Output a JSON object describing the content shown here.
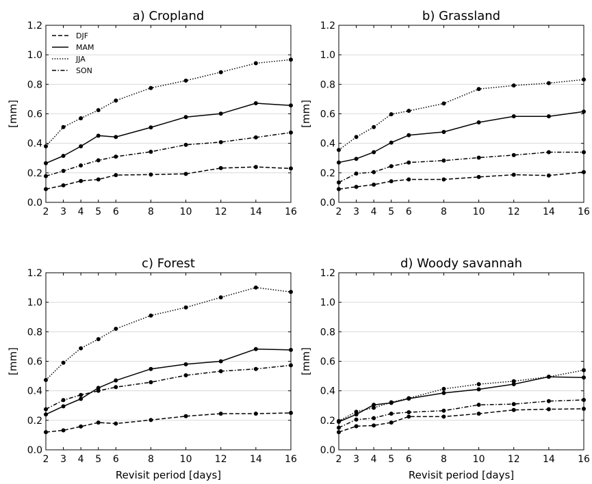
{
  "chart_data": [
    {
      "type": "line",
      "title": "a) Cropland",
      "xlabel": "",
      "ylabel": "[mm]",
      "x": [
        2,
        3,
        4,
        5,
        6,
        8,
        10,
        12,
        14,
        16
      ],
      "xticks": [
        "2",
        "3",
        "4",
        "5",
        "6",
        "8",
        "10",
        "12",
        "14",
        "16"
      ],
      "yticks": [
        "0.0",
        "0.2",
        "0.4",
        "0.6",
        "0.8",
        "1.0",
        "1.2"
      ],
      "ylim": [
        0,
        1.2
      ],
      "grid": "horizontal",
      "legend": {
        "placement": "top-left"
      },
      "series": [
        {
          "name": "DJF",
          "style": "dashed",
          "values": [
            0.09,
            0.115,
            0.145,
            0.155,
            0.185,
            0.188,
            0.193,
            0.232,
            0.24,
            0.23
          ]
        },
        {
          "name": "MAM",
          "style": "solid",
          "values": [
            0.265,
            0.315,
            0.38,
            0.452,
            0.443,
            0.508,
            0.578,
            0.601,
            0.672,
            0.657
          ]
        },
        {
          "name": "JJA",
          "style": "dotted",
          "values": [
            0.38,
            0.51,
            0.57,
            0.625,
            0.69,
            0.775,
            0.825,
            0.882,
            0.943,
            0.967
          ]
        },
        {
          "name": "SON",
          "style": "dashdot",
          "values": [
            0.178,
            0.213,
            0.25,
            0.285,
            0.31,
            0.343,
            0.39,
            0.408,
            0.44,
            0.473
          ]
        }
      ]
    },
    {
      "type": "line",
      "title": "b) Grassland",
      "xlabel": "",
      "ylabel": "[mm]",
      "x": [
        2,
        3,
        4,
        5,
        6,
        8,
        10,
        12,
        14,
        16
      ],
      "xticks": [
        "2",
        "3",
        "4",
        "5",
        "6",
        "8",
        "10",
        "12",
        "14",
        "16"
      ],
      "yticks": [
        "0.0",
        "0.2",
        "0.4",
        "0.6",
        "0.8",
        "1.0",
        "1.2"
      ],
      "ylim": [
        0,
        1.2
      ],
      "grid": "horizontal",
      "series": [
        {
          "name": "DJF",
          "style": "dashed",
          "values": [
            0.09,
            0.105,
            0.12,
            0.143,
            0.155,
            0.155,
            0.172,
            0.187,
            0.182,
            0.205
          ]
        },
        {
          "name": "MAM",
          "style": "solid",
          "values": [
            0.27,
            0.295,
            0.34,
            0.405,
            0.455,
            0.477,
            0.542,
            0.583,
            0.583,
            0.615
          ]
        },
        {
          "name": "JJA",
          "style": "dotted",
          "values": [
            0.355,
            0.443,
            0.51,
            0.597,
            0.62,
            0.67,
            0.768,
            0.792,
            0.808,
            0.832
          ]
        },
        {
          "name": "SON",
          "style": "dashdot",
          "values": [
            0.135,
            0.195,
            0.205,
            0.245,
            0.27,
            0.283,
            0.303,
            0.32,
            0.34,
            0.34
          ]
        }
      ]
    },
    {
      "type": "line",
      "title": "c) Forest",
      "xlabel": "Revisit period [days]",
      "ylabel": "[mm]",
      "x": [
        2,
        3,
        4,
        5,
        6,
        8,
        10,
        12,
        14,
        16
      ],
      "xticks": [
        "2",
        "3",
        "4",
        "5",
        "6",
        "8",
        "10",
        "12",
        "14",
        "16"
      ],
      "yticks": [
        "0.0",
        "0.2",
        "0.4",
        "0.6",
        "0.8",
        "1.0",
        "1.2"
      ],
      "ylim": [
        0,
        1.2
      ],
      "grid": "horizontal",
      "series": [
        {
          "name": "DJF",
          "style": "dashed",
          "values": [
            0.12,
            0.132,
            0.158,
            0.185,
            0.178,
            0.202,
            0.228,
            0.245,
            0.245,
            0.25
          ]
        },
        {
          "name": "MAM",
          "style": "solid",
          "values": [
            0.24,
            0.295,
            0.345,
            0.42,
            0.47,
            0.548,
            0.58,
            0.6,
            0.683,
            0.677
          ]
        },
        {
          "name": "JJA",
          "style": "dotted",
          "values": [
            0.473,
            0.59,
            0.688,
            0.75,
            0.82,
            0.91,
            0.965,
            1.033,
            1.1,
            1.07
          ]
        },
        {
          "name": "SON",
          "style": "dashdot",
          "values": [
            0.275,
            0.337,
            0.372,
            0.4,
            0.425,
            0.458,
            0.505,
            0.533,
            0.548,
            0.573
          ]
        }
      ]
    },
    {
      "type": "line",
      "title": "d) Woody savannah",
      "xlabel": "Revisit period [days]",
      "ylabel": "[mm]",
      "x": [
        2,
        3,
        4,
        5,
        6,
        8,
        10,
        12,
        14,
        16
      ],
      "xticks": [
        "2",
        "3",
        "4",
        "5",
        "6",
        "8",
        "10",
        "12",
        "14",
        "16"
      ],
      "yticks": [
        "0.0",
        "0.2",
        "0.4",
        "0.6",
        "0.8",
        "1.0",
        "1.2"
      ],
      "ylim": [
        0,
        1.2
      ],
      "grid": "horizontal",
      "series": [
        {
          "name": "DJF",
          "style": "dashed",
          "values": [
            0.12,
            0.16,
            0.165,
            0.185,
            0.225,
            0.225,
            0.245,
            0.27,
            0.275,
            0.278
          ]
        },
        {
          "name": "MAM",
          "style": "solid",
          "values": [
            0.19,
            0.24,
            0.305,
            0.318,
            0.347,
            0.385,
            0.41,
            0.445,
            0.495,
            0.49
          ]
        },
        {
          "name": "JJA",
          "style": "dotted",
          "values": [
            0.195,
            0.258,
            0.285,
            0.322,
            0.35,
            0.413,
            0.445,
            0.465,
            0.495,
            0.54
          ]
        },
        {
          "name": "SON",
          "style": "dashdot",
          "values": [
            0.15,
            0.205,
            0.215,
            0.245,
            0.255,
            0.265,
            0.305,
            0.31,
            0.33,
            0.338
          ]
        }
      ]
    }
  ]
}
